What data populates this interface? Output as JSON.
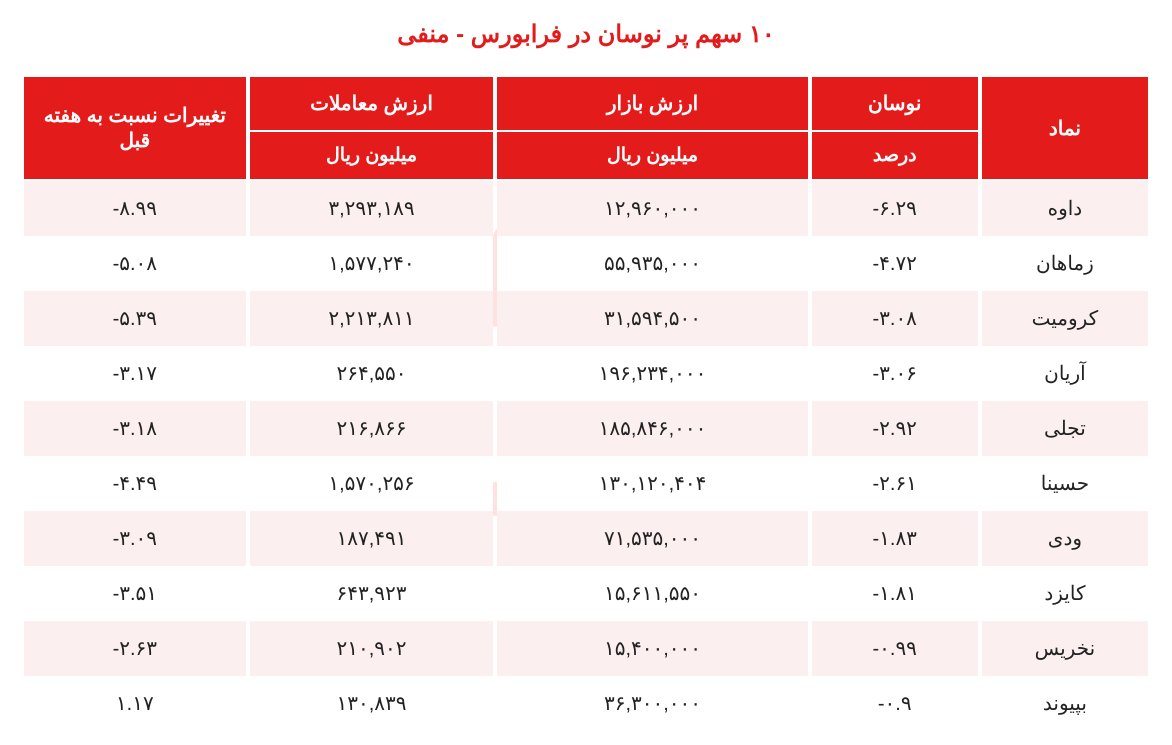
{
  "title": "۱۰ سهم پر نوسان در فرابورس - منفی",
  "styling": {
    "header_bg": "#e31b1b",
    "header_text": "#ffffff",
    "row_odd_bg": "#fbeff0",
    "row_even_bg": "#ffffff",
    "text_color": "#222222",
    "title_color": "#e31b1b",
    "title_fontsize": 24,
    "header_fontsize": 20,
    "cell_fontsize": 20,
    "border_spacing_x": 4
  },
  "columns": [
    {
      "key": "symbol",
      "header": "نماد",
      "sub": null,
      "width_pct": 15
    },
    {
      "key": "fluctuation",
      "header": "نوسان",
      "sub": "درصد",
      "width_pct": 15
    },
    {
      "key": "market_value",
      "header": "ارزش بازار",
      "sub": "میلیون ریال",
      "width_pct": 28
    },
    {
      "key": "trade_value",
      "header": "ارزش معاملات",
      "sub": "میلیون ریال",
      "width_pct": 22
    },
    {
      "key": "change",
      "header": "تغییرات نسبت به هفته قبل",
      "sub": null,
      "width_pct": 20
    }
  ],
  "rows": [
    {
      "symbol": "داوه",
      "fluctuation": "-۶.۲۹",
      "market_value": "۱۲,۹۶۰,۰۰۰",
      "trade_value": "۳,۲۹۳,۱۸۹",
      "change": "-۸.۹۹"
    },
    {
      "symbol": "زماهان",
      "fluctuation": "-۴.۷۲",
      "market_value": "۵۵,۹۳۵,۰۰۰",
      "trade_value": "۱,۵۷۷,۲۴۰",
      "change": "-۵.۰۸"
    },
    {
      "symbol": "کرومیت",
      "fluctuation": "-۳.۰۸",
      "market_value": "۳۱,۵۹۴,۵۰۰",
      "trade_value": "۲,۲۱۳,۸۱۱",
      "change": "-۵.۳۹"
    },
    {
      "symbol": "آریان",
      "fluctuation": "-۳.۰۶",
      "market_value": "۱۹۶,۲۳۴,۰۰۰",
      "trade_value": "۲۶۴,۵۵۰",
      "change": "-۳.۱۷"
    },
    {
      "symbol": "تجلی",
      "fluctuation": "-۲.۹۲",
      "market_value": "۱۸۵,۸۴۶,۰۰۰",
      "trade_value": "۲۱۶,۸۶۶",
      "change": "-۳.۱۸"
    },
    {
      "symbol": "حسینا",
      "fluctuation": "-۲.۶۱",
      "market_value": "۱۳۰,۱۲۰,۴۰۴",
      "trade_value": "۱,۵۷۰,۲۵۶",
      "change": "-۴.۴۹"
    },
    {
      "symbol": "ودی",
      "fluctuation": "-۱.۸۳",
      "market_value": "۷۱,۵۳۵,۰۰۰",
      "trade_value": "۱۸۷,۴۹۱",
      "change": "-۳.۰۹"
    },
    {
      "symbol": "کایزد",
      "fluctuation": "-۱.۸۱",
      "market_value": "۱۵,۶۱۱,۵۵۰",
      "trade_value": "۶۴۳,۹۲۳",
      "change": "-۳.۵۱"
    },
    {
      "symbol": "نخریس",
      "fluctuation": "-۰.۹۹",
      "market_value": "۱۵,۴۰۰,۰۰۰",
      "trade_value": "۲۱۰,۹۰۲",
      "change": "-۲.۶۳"
    },
    {
      "symbol": "بپیوند",
      "fluctuation": "-۰.۹",
      "market_value": "۳۶,۳۰۰,۰۰۰",
      "trade_value": "۱۳۰,۸۳۹",
      "change": "۱.۱۷"
    }
  ]
}
